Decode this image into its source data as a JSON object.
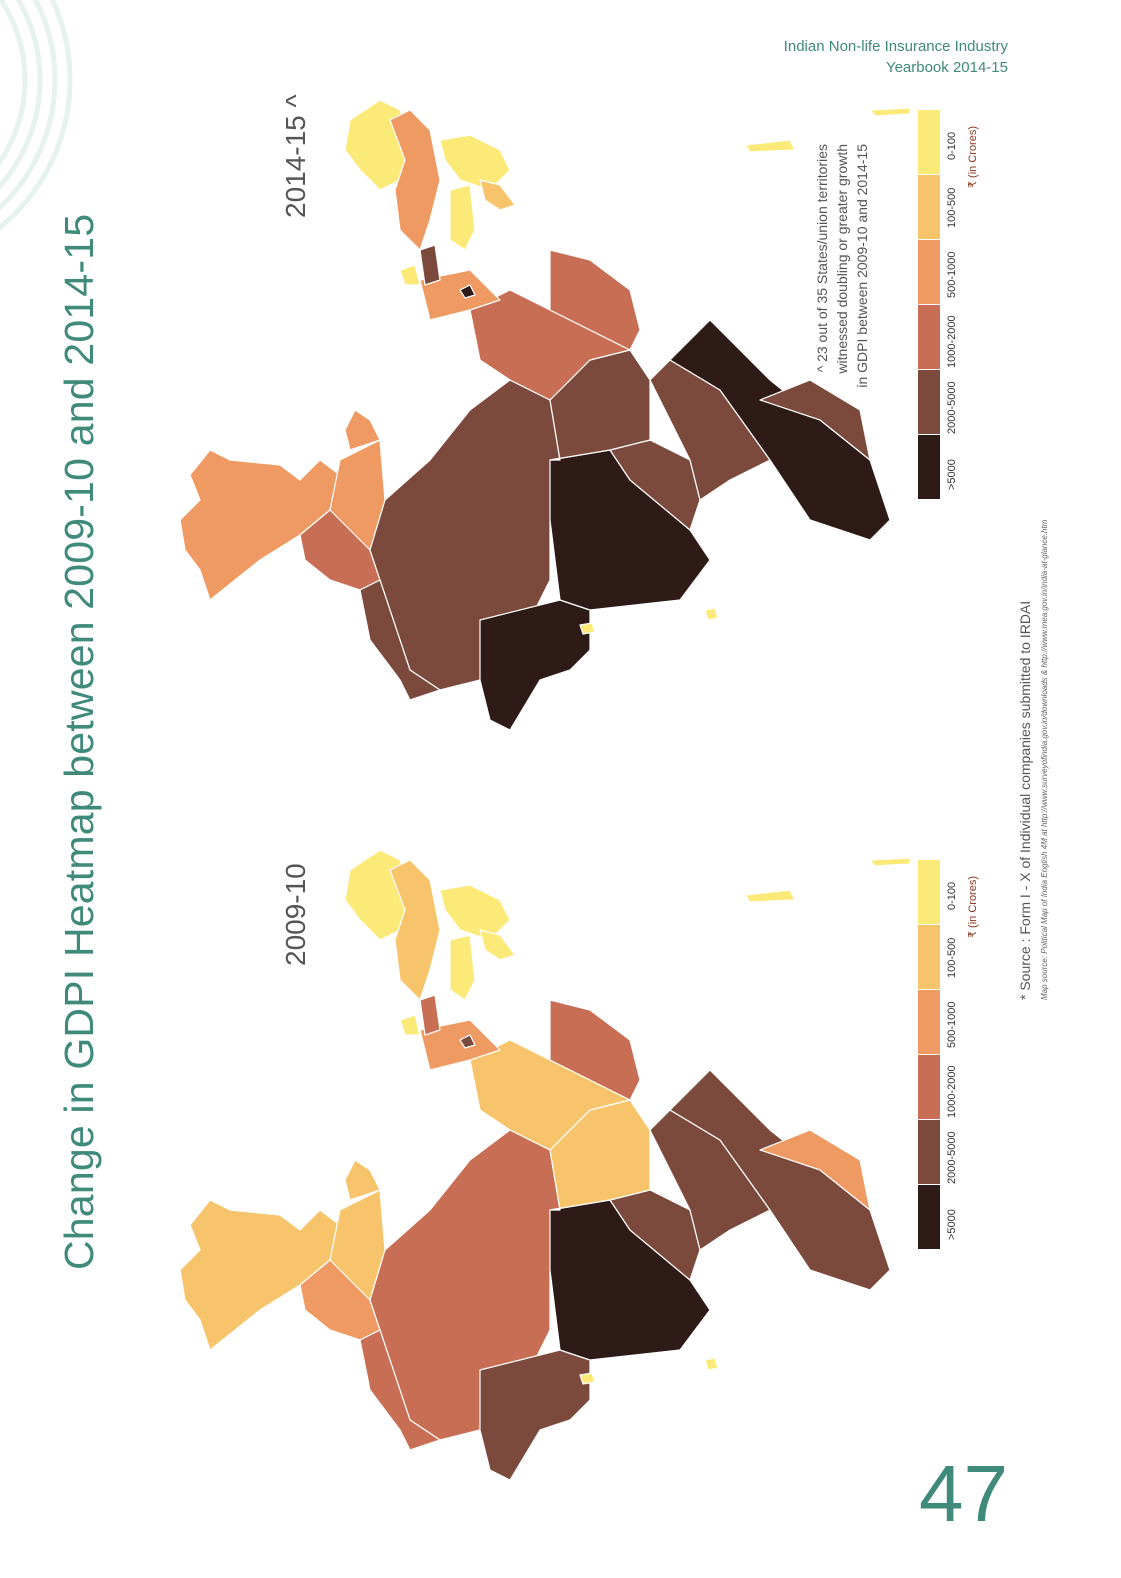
{
  "header": {
    "line1": "Indian Non-life Insurance Industry",
    "line2": "Yearbook 2014-15"
  },
  "title": "Change in GDPI Heatmap between 2009-10 and 2014-15",
  "maps": [
    {
      "label": "2014-15 ^"
    },
    {
      "label": "2009-10"
    }
  ],
  "note": {
    "line1": "^ 23 out of 35 States/union territories",
    "line2": "witnessed doubling or greater growth",
    "line3": "in GDPI between 2009-10 and 2014-15"
  },
  "legend": {
    "unit": "₹ (in Crores)",
    "bins": [
      {
        "label": ">5000",
        "color": "#2e1b17"
      },
      {
        "label": "2000-5000",
        "color": "#7c4a3c"
      },
      {
        "label": "1000-2000",
        "color": "#c86e54"
      },
      {
        "label": "500-1000",
        "color": "#ee9a62"
      },
      {
        "label": "100-500",
        "color": "#f7c46b"
      },
      {
        "label": "0-100",
        "color": "#fbe978"
      }
    ]
  },
  "source": "* Source : Form I - X of Individual companies submitted to IRDAI",
  "map_source": "Map source: Political Map of India English 4M at http://www.surveyofindia.gov.in/downloads & http://www.mea.gov.in/india-at-glance.htm",
  "page_number": "47",
  "colors": {
    "accent": "#3f8a7b"
  }
}
